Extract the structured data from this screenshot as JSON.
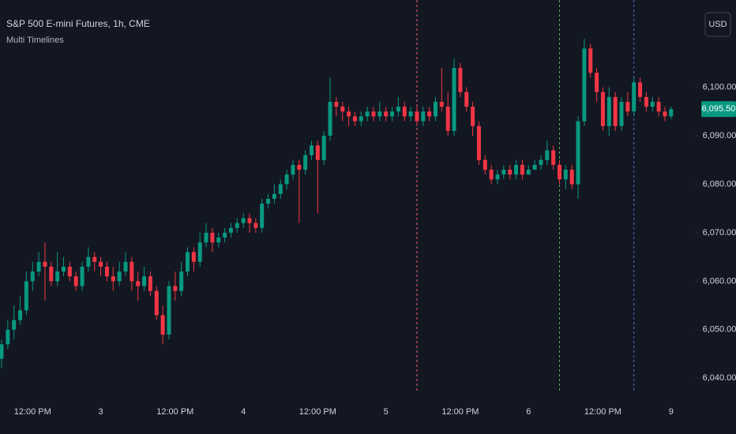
{
  "chart_data": {
    "type": "candlestick",
    "title": "S&P 500 E-mini Futures, 1h, CME",
    "subtitle": "Multi Timelines",
    "currency": "USD",
    "up_color": "#089981",
    "down_color": "#f23645",
    "categories": [
      null,
      null,
      null,
      null,
      null,
      "12:00 PM",
      null,
      null,
      null,
      null,
      null,
      null,
      null,
      null,
      null,
      null,
      "3",
      null,
      null,
      null,
      null,
      null,
      null,
      null,
      null,
      null,
      null,
      null,
      "12:00 PM",
      null,
      null,
      null,
      null,
      null,
      null,
      null,
      null,
      null,
      null,
      "4",
      null,
      null,
      null,
      null,
      null,
      null,
      null,
      null,
      null,
      null,
      null,
      "12:00 PM",
      null,
      null,
      null,
      null,
      null,
      null,
      null,
      null,
      null,
      null,
      "5",
      null,
      null,
      null,
      null,
      null,
      null,
      null,
      null,
      null,
      null,
      null,
      "12:00 PM",
      null,
      null,
      null,
      null,
      null,
      null,
      null,
      null,
      null,
      null,
      "6",
      null,
      null,
      null,
      null,
      null,
      null,
      null,
      null,
      null,
      null,
      null,
      "12:00 PM",
      null,
      null,
      null,
      null,
      null,
      null,
      null,
      null,
      null,
      null,
      "9"
    ],
    "open": [
      6044,
      6047,
      6050,
      6052,
      6054,
      6060,
      6062,
      6064,
      6063,
      6060,
      6062,
      6063,
      6061,
      6059,
      6063,
      6065,
      6064,
      6063,
      6061,
      6060,
      6062,
      6064,
      6060,
      6059,
      6061,
      6058,
      6053,
      6049,
      6059,
      6058,
      6062,
      6066,
      6064,
      6068,
      6070,
      6068,
      6069,
      6070,
      6071,
      6072,
      6073,
      6072,
      6071,
      6076,
      6077,
      6078,
      6080,
      6082,
      6084,
      6083,
      6086,
      6088,
      6085,
      6090,
      6097,
      6096,
      6095,
      6094,
      6093,
      6094,
      6095,
      6094,
      6095,
      6094,
      6095,
      6096,
      6094,
      6095,
      6093,
      6095,
      6094,
      6097,
      6096,
      6091,
      6104,
      6099,
      6096,
      6092,
      6085,
      6083,
      6081,
      6082,
      6083,
      6082,
      6084,
      6082,
      6083,
      6084,
      6085,
      6087,
      6084,
      6081,
      6083,
      6080,
      6093,
      6108,
      6103,
      6099,
      6092,
      6098,
      6092,
      6097,
      6095,
      6101,
      6098,
      6096,
      6097,
      6095,
      6094
    ],
    "high": [
      6048,
      6052,
      6055,
      6057,
      6062,
      6064,
      6066,
      6068,
      6064,
      6066,
      6065,
      6064,
      6062,
      6064,
      6067,
      6066,
      6065,
      6064,
      6063,
      6064,
      6066,
      6065,
      6062,
      6063,
      6062,
      6059,
      6055,
      6060,
      6062,
      6064,
      6067,
      6067,
      6070,
      6072,
      6071,
      6070,
      6071,
      6072,
      6073,
      6074,
      6074,
      6073,
      6077,
      6078,
      6080,
      6081,
      6083,
      6085,
      6085,
      6087,
      6089,
      6089,
      6091,
      6102,
      6098,
      6097,
      6096,
      6095,
      6095,
      6096,
      6096,
      6097,
      6096,
      6096,
      6098,
      6097,
      6096,
      6096,
      6096,
      6096,
      6098,
      6104,
      6099,
      6106,
      6105,
      6100,
      6097,
      6093,
      6086,
      6084,
      6083,
      6084,
      6084,
      6085,
      6085,
      6084,
      6085,
      6086,
      6089,
      6088,
      6085,
      6084,
      6084,
      6094,
      6110,
      6109,
      6104,
      6100,
      6100,
      6099,
      6098,
      6099,
      6102,
      6102,
      6099,
      6098,
      6098,
      6096,
      6096
    ],
    "low": [
      6042,
      6046,
      6048,
      6051,
      6053,
      6058,
      6061,
      6056,
      6059,
      6059,
      6061,
      6060,
      6058,
      6058,
      6062,
      6062,
      6061,
      6060,
      6058,
      6059,
      6061,
      6058,
      6056,
      6058,
      6057,
      6052,
      6047,
      6048,
      6056,
      6057,
      6061,
      6062,
      6063,
      6067,
      6066,
      6067,
      6068,
      6069,
      6070,
      6071,
      6070,
      6070,
      6070,
      6075,
      6076,
      6077,
      6079,
      6081,
      6072,
      6082,
      6085,
      6074,
      6084,
      6089,
      6094,
      6093,
      6092,
      6092,
      6092,
      6093,
      6093,
      6093,
      6093,
      6093,
      6094,
      6093,
      6093,
      6092,
      6092,
      6093,
      6093,
      6095,
      6090,
      6090,
      6098,
      6095,
      6090,
      6084,
      6082,
      6080,
      6080,
      6081,
      6081,
      6081,
      6081,
      6082,
      6083,
      6083,
      6084,
      6083,
      6080,
      6079,
      6079,
      6077,
      6092,
      6102,
      6097,
      6091,
      6090,
      6091,
      6091,
      6094,
      6094,
      6097,
      6095,
      6095,
      6094,
      6093,
      6093.5
    ],
    "close": [
      6047,
      6050,
      6052,
      6054,
      6060,
      6062,
      6064,
      6063,
      6060,
      6062,
      6063,
      6061,
      6059,
      6063,
      6065,
      6064,
      6063,
      6061,
      6060,
      6062,
      6064,
      6060,
      6059,
      6061,
      6058,
      6053,
      6049,
      6059,
      6058,
      6062,
      6066,
      6064,
      6068,
      6070,
      6068,
      6069,
      6070,
      6071,
      6072,
      6073,
      6072,
      6071,
      6076,
      6077,
      6078,
      6080,
      6082,
      6084,
      6083,
      6086,
      6088,
      6085,
      6090,
      6097,
      6096,
      6095,
      6094,
      6093,
      6094,
      6095,
      6094,
      6095,
      6094,
      6095,
      6096,
      6094,
      6095,
      6093,
      6095,
      6094,
      6097,
      6096,
      6091,
      6104,
      6099,
      6096,
      6092,
      6085,
      6083,
      6081,
      6082,
      6083,
      6082,
      6084,
      6082,
      6083,
      6084,
      6085,
      6087,
      6084,
      6081,
      6083,
      6080,
      6093,
      6108,
      6103,
      6099,
      6092,
      6098,
      6092,
      6097,
      6095,
      6101,
      6098,
      6096,
      6097,
      6095,
      6094,
      6095.5
    ],
    "last_price_label": "6,095.50",
    "timelines": [
      {
        "index": 67,
        "color": "#ef5f7a"
      },
      {
        "index": 90,
        "color": "#4caf50"
      },
      {
        "index": 102,
        "color": "#5b6ee1"
      }
    ],
    "ylim": [
      6035,
      6118
    ],
    "yticks": [
      {
        "value": 6040,
        "label": "6,040.00"
      },
      {
        "value": 6050,
        "label": "6,050.00"
      },
      {
        "value": 6060,
        "label": "6,060.00"
      },
      {
        "value": 6070,
        "label": "6,070.00"
      },
      {
        "value": 6080,
        "label": "6,080.00"
      },
      {
        "value": 6090,
        "label": "6,090.00"
      },
      {
        "value": 6100,
        "label": "6,100.00"
      }
    ]
  }
}
